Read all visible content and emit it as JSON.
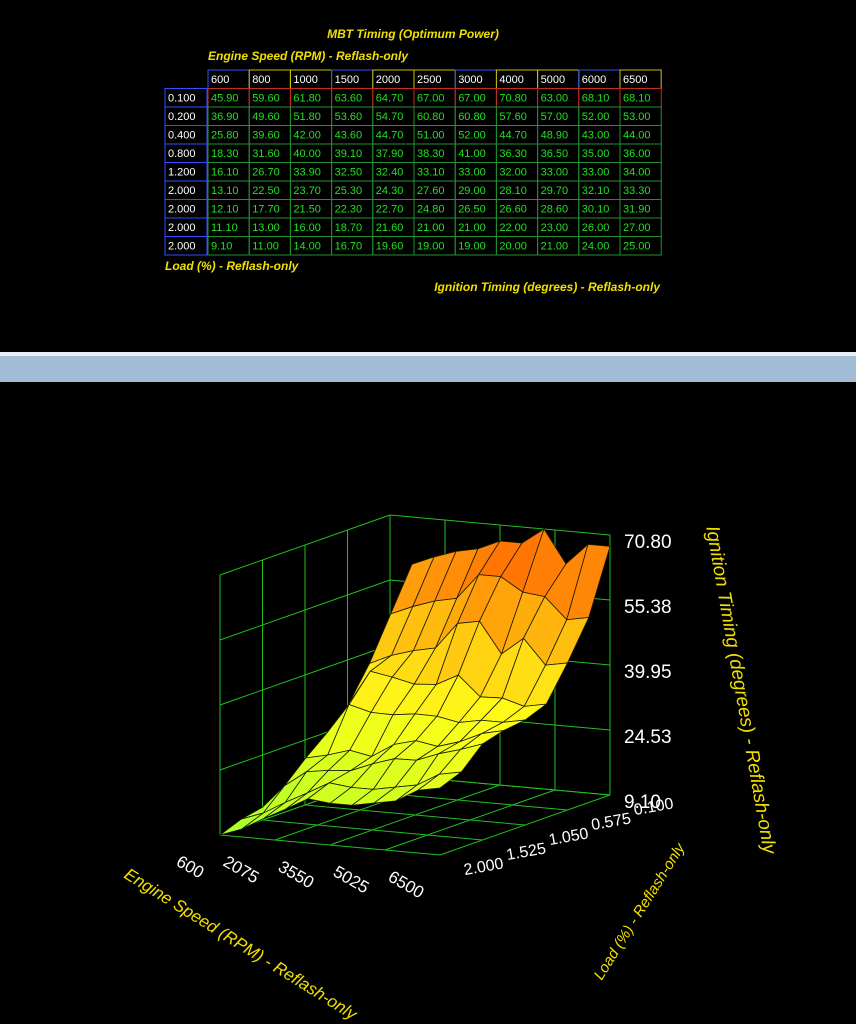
{
  "table": {
    "title": "MBT Timing (Optimum Power)",
    "column_axis": "Engine Speed (RPM) - Reflash-only",
    "columns": [
      "600",
      "800",
      "1000",
      "1500",
      "2000",
      "2500",
      "3000",
      "4000",
      "5000",
      "6000",
      "6500"
    ],
    "row_axis": "Load (%) - Reflash-only",
    "value_axis": "Ignition Timing (degrees) - Reflash-only",
    "rows": [
      {
        "load": "0.100",
        "cells": [
          "45.90",
          "59.60",
          "61.80",
          "63.60",
          "64.70",
          "67.00",
          "67.00",
          "70.80",
          "63.00",
          "68.10",
          "68.10"
        ]
      },
      {
        "load": "0.200",
        "cells": [
          "36.90",
          "49.60",
          "51.80",
          "53.60",
          "54.70",
          "60.80",
          "60.80",
          "57.60",
          "57.00",
          "52.00",
          "53.00"
        ]
      },
      {
        "load": "0.400",
        "cells": [
          "25.80",
          "39.60",
          "42.00",
          "43.60",
          "44.70",
          "51.00",
          "52.00",
          "44.70",
          "48.90",
          "43.00",
          "44.00"
        ]
      },
      {
        "load": "0.800",
        "cells": [
          "18.30",
          "31.60",
          "40.00",
          "39.10",
          "37.90",
          "38.30",
          "41.00",
          "36.30",
          "36.50",
          "35.00",
          "36.00"
        ]
      },
      {
        "load": "1.200",
        "cells": [
          "16.10",
          "26.70",
          "33.90",
          "32.50",
          "32.40",
          "33.10",
          "33.00",
          "32.00",
          "33.00",
          "33.00",
          "34.00"
        ]
      },
      {
        "load": "2.000",
        "cells": [
          "13.10",
          "22.50",
          "23.70",
          "25.30",
          "24.30",
          "27.60",
          "29.00",
          "28.10",
          "29.70",
          "32.10",
          "33.30"
        ]
      },
      {
        "load": "2.000",
        "cells": [
          "12.10",
          "17.70",
          "21.50",
          "22.30",
          "22.70",
          "24.80",
          "26.50",
          "26.60",
          "28.60",
          "30.10",
          "31.90"
        ]
      },
      {
        "load": "2.000",
        "cells": [
          "11.10",
          "13.00",
          "16.00",
          "18.70",
          "21.60",
          "21.00",
          "21.00",
          "22.00",
          "23.00",
          "26.00",
          "27.00"
        ]
      },
      {
        "load": "2.000",
        "cells": [
          "9.10",
          "11.00",
          "14.00",
          "16.70",
          "19.60",
          "19.00",
          "19.00",
          "20.00",
          "21.00",
          "24.00",
          "25.00"
        ]
      }
    ]
  },
  "surface": {
    "z_axis_title": "Ignition Timing (degrees) - Reflash-only",
    "x_axis_title": "Engine Speed (RPM) - Reflash-only",
    "y_axis_title": "Load (%) - Reflash-only",
    "zticks": [
      "70.80",
      "55.38",
      "39.95",
      "24.53",
      "9.10"
    ],
    "xticks": [
      "600",
      "2075",
      "3550",
      "5025",
      "6500"
    ],
    "yticks": [
      "0.100",
      "0.575",
      "1.050",
      "1.525",
      "2.000"
    ]
  }
}
